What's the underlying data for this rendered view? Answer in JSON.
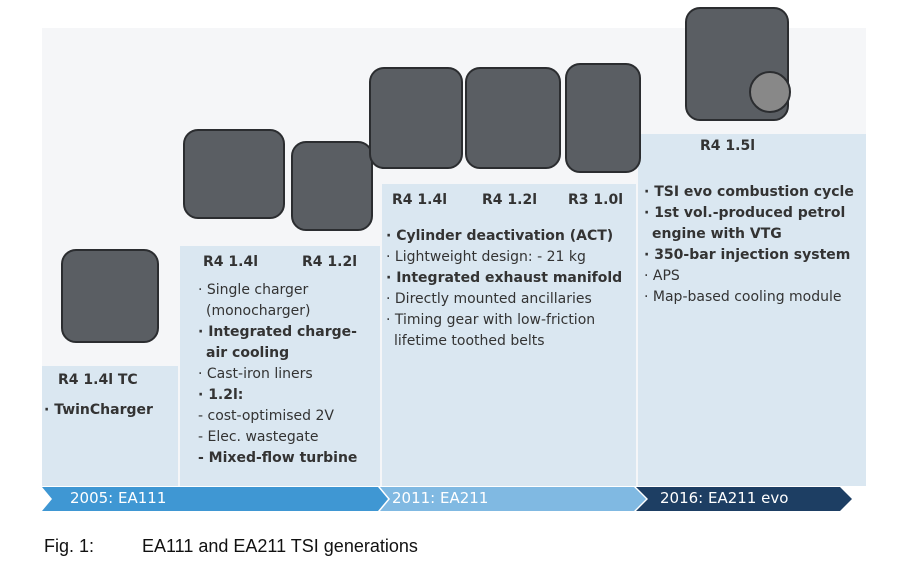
{
  "columns": [
    {
      "engines": [
        "R4 1.4l TC"
      ],
      "features": [
        {
          "text": "· TwinCharger",
          "bold": true
        }
      ]
    },
    {
      "engines": [
        "R4 1.4l",
        "R4 1.2l"
      ],
      "features": [
        {
          "text": "· Single charger (monocharger)",
          "bold": false
        },
        {
          "text": "· Integrated charge-air cooling",
          "bold": true
        },
        {
          "text": "· Cast-iron liners",
          "bold": false
        },
        {
          "text": "· 1.2l:",
          "bold": true
        },
        {
          "text": "- cost-optimised 2V",
          "bold": false
        },
        {
          "text": "- Elec. wastegate",
          "bold": false
        },
        {
          "text": "- Mixed-flow turbine",
          "bold": true
        }
      ]
    },
    {
      "engines": [
        "R4 1.4l",
        "R4 1.2l",
        "R3 1.0l"
      ],
      "features": [
        {
          "text": "· Cylinder deactivation (ACT)",
          "bold": true
        },
        {
          "text": "· Lightweight design: - 21 kg",
          "bold": false
        },
        {
          "text": "· Integrated exhaust manifold",
          "bold": true
        },
        {
          "text": "· Directly mounted ancillaries",
          "bold": false
        },
        {
          "text": "· Timing gear with low-friction lifetime toothed belts",
          "bold": false
        }
      ]
    },
    {
      "engines": [
        "R4 1.5l"
      ],
      "features": [
        {
          "text": "· TSI evo combustion cycle",
          "bold": true
        },
        {
          "text": "· 1st vol.-produced petrol engine with VTG",
          "bold": true
        },
        {
          "text": "· 350-bar injection system",
          "bold": true
        },
        {
          "text": "· APS",
          "bold": false
        },
        {
          "text": "· Map-based cooling module",
          "bold": false
        }
      ]
    }
  ],
  "timeline": [
    "2005: EA111",
    "2011: EA211",
    "2016: EA211 evo"
  ],
  "caption": {
    "label": "Fig. 1:",
    "text": "EA111 and EA211 TSI generations"
  }
}
